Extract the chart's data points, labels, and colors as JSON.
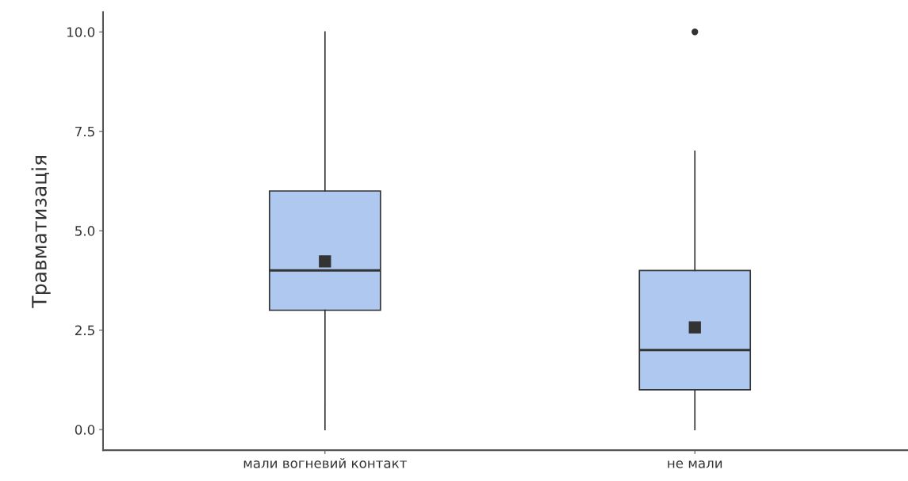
{
  "chart_data": {
    "type": "box",
    "ylabel": "Травматизація",
    "categories": [
      "мали вогневий контакт",
      "не мали"
    ],
    "boxes": [
      {
        "low": 0,
        "q1": 3,
        "median": 4,
        "q3": 6,
        "high": 10,
        "mean": 4.23
      },
      {
        "low": 0,
        "q1": 1,
        "median": 2,
        "q3": 4,
        "high": 7,
        "mean": 2.57,
        "outliers": [
          10
        ]
      }
    ],
    "color": "#aec8f0",
    "marker": "square",
    "ylim": [
      -0.52,
      10.5
    ],
    "yticks": [
      {
        "value": 0,
        "label": "0.0"
      },
      {
        "value": 2.5,
        "label": "2.5"
      },
      {
        "value": 5,
        "label": "5.0"
      },
      {
        "value": 7.5,
        "label": "7.5"
      },
      {
        "value": 10,
        "label": "10.0"
      }
    ],
    "grid": false,
    "legend": false
  }
}
